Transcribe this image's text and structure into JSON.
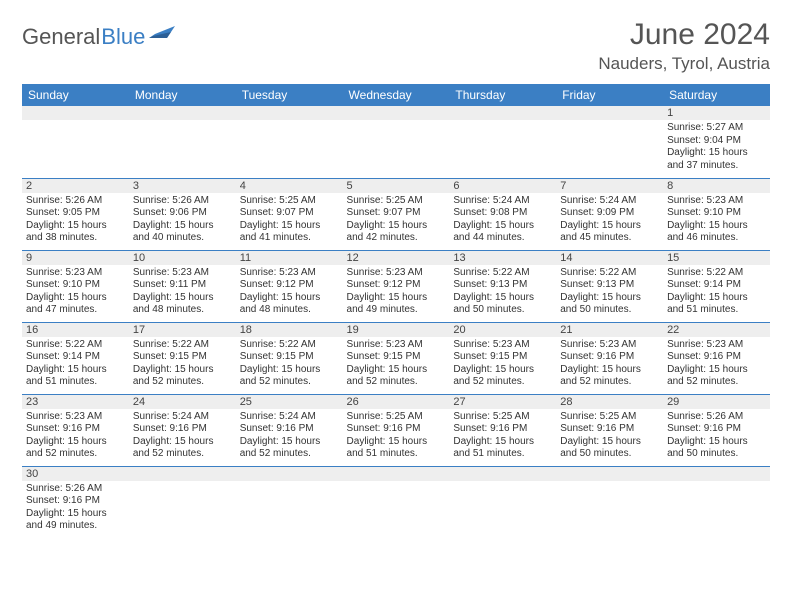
{
  "brand": {
    "part1": "General",
    "part2": "Blue"
  },
  "title": "June 2024",
  "location": "Nauders, Tyrol, Austria",
  "colors": {
    "header_bg": "#3b7fc4",
    "header_text": "#ffffff",
    "daynum_bg": "#eeeeee",
    "cell_border": "#3b7fc4",
    "text": "#333333",
    "title_text": "#555555"
  },
  "fonts": {
    "title_size": 30,
    "location_size": 17,
    "dayheader_size": 12,
    "daynum_size": 11,
    "detail_size": 10
  },
  "day_headers": [
    "Sunday",
    "Monday",
    "Tuesday",
    "Wednesday",
    "Thursday",
    "Friday",
    "Saturday"
  ],
  "weeks": [
    [
      {
        "n": "",
        "sr": "",
        "ss": "",
        "dl": ""
      },
      {
        "n": "",
        "sr": "",
        "ss": "",
        "dl": ""
      },
      {
        "n": "",
        "sr": "",
        "ss": "",
        "dl": ""
      },
      {
        "n": "",
        "sr": "",
        "ss": "",
        "dl": ""
      },
      {
        "n": "",
        "sr": "",
        "ss": "",
        "dl": ""
      },
      {
        "n": "",
        "sr": "",
        "ss": "",
        "dl": ""
      },
      {
        "n": "1",
        "sr": "Sunrise: 5:27 AM",
        "ss": "Sunset: 9:04 PM",
        "dl": "Daylight: 15 hours and 37 minutes."
      }
    ],
    [
      {
        "n": "2",
        "sr": "Sunrise: 5:26 AM",
        "ss": "Sunset: 9:05 PM",
        "dl": "Daylight: 15 hours and 38 minutes."
      },
      {
        "n": "3",
        "sr": "Sunrise: 5:26 AM",
        "ss": "Sunset: 9:06 PM",
        "dl": "Daylight: 15 hours and 40 minutes."
      },
      {
        "n": "4",
        "sr": "Sunrise: 5:25 AM",
        "ss": "Sunset: 9:07 PM",
        "dl": "Daylight: 15 hours and 41 minutes."
      },
      {
        "n": "5",
        "sr": "Sunrise: 5:25 AM",
        "ss": "Sunset: 9:07 PM",
        "dl": "Daylight: 15 hours and 42 minutes."
      },
      {
        "n": "6",
        "sr": "Sunrise: 5:24 AM",
        "ss": "Sunset: 9:08 PM",
        "dl": "Daylight: 15 hours and 44 minutes."
      },
      {
        "n": "7",
        "sr": "Sunrise: 5:24 AM",
        "ss": "Sunset: 9:09 PM",
        "dl": "Daylight: 15 hours and 45 minutes."
      },
      {
        "n": "8",
        "sr": "Sunrise: 5:23 AM",
        "ss": "Sunset: 9:10 PM",
        "dl": "Daylight: 15 hours and 46 minutes."
      }
    ],
    [
      {
        "n": "9",
        "sr": "Sunrise: 5:23 AM",
        "ss": "Sunset: 9:10 PM",
        "dl": "Daylight: 15 hours and 47 minutes."
      },
      {
        "n": "10",
        "sr": "Sunrise: 5:23 AM",
        "ss": "Sunset: 9:11 PM",
        "dl": "Daylight: 15 hours and 48 minutes."
      },
      {
        "n": "11",
        "sr": "Sunrise: 5:23 AM",
        "ss": "Sunset: 9:12 PM",
        "dl": "Daylight: 15 hours and 48 minutes."
      },
      {
        "n": "12",
        "sr": "Sunrise: 5:23 AM",
        "ss": "Sunset: 9:12 PM",
        "dl": "Daylight: 15 hours and 49 minutes."
      },
      {
        "n": "13",
        "sr": "Sunrise: 5:22 AM",
        "ss": "Sunset: 9:13 PM",
        "dl": "Daylight: 15 hours and 50 minutes."
      },
      {
        "n": "14",
        "sr": "Sunrise: 5:22 AM",
        "ss": "Sunset: 9:13 PM",
        "dl": "Daylight: 15 hours and 50 minutes."
      },
      {
        "n": "15",
        "sr": "Sunrise: 5:22 AM",
        "ss": "Sunset: 9:14 PM",
        "dl": "Daylight: 15 hours and 51 minutes."
      }
    ],
    [
      {
        "n": "16",
        "sr": "Sunrise: 5:22 AM",
        "ss": "Sunset: 9:14 PM",
        "dl": "Daylight: 15 hours and 51 minutes."
      },
      {
        "n": "17",
        "sr": "Sunrise: 5:22 AM",
        "ss": "Sunset: 9:15 PM",
        "dl": "Daylight: 15 hours and 52 minutes."
      },
      {
        "n": "18",
        "sr": "Sunrise: 5:22 AM",
        "ss": "Sunset: 9:15 PM",
        "dl": "Daylight: 15 hours and 52 minutes."
      },
      {
        "n": "19",
        "sr": "Sunrise: 5:23 AM",
        "ss": "Sunset: 9:15 PM",
        "dl": "Daylight: 15 hours and 52 minutes."
      },
      {
        "n": "20",
        "sr": "Sunrise: 5:23 AM",
        "ss": "Sunset: 9:15 PM",
        "dl": "Daylight: 15 hours and 52 minutes."
      },
      {
        "n": "21",
        "sr": "Sunrise: 5:23 AM",
        "ss": "Sunset: 9:16 PM",
        "dl": "Daylight: 15 hours and 52 minutes."
      },
      {
        "n": "22",
        "sr": "Sunrise: 5:23 AM",
        "ss": "Sunset: 9:16 PM",
        "dl": "Daylight: 15 hours and 52 minutes."
      }
    ],
    [
      {
        "n": "23",
        "sr": "Sunrise: 5:23 AM",
        "ss": "Sunset: 9:16 PM",
        "dl": "Daylight: 15 hours and 52 minutes."
      },
      {
        "n": "24",
        "sr": "Sunrise: 5:24 AM",
        "ss": "Sunset: 9:16 PM",
        "dl": "Daylight: 15 hours and 52 minutes."
      },
      {
        "n": "25",
        "sr": "Sunrise: 5:24 AM",
        "ss": "Sunset: 9:16 PM",
        "dl": "Daylight: 15 hours and 52 minutes."
      },
      {
        "n": "26",
        "sr": "Sunrise: 5:25 AM",
        "ss": "Sunset: 9:16 PM",
        "dl": "Daylight: 15 hours and 51 minutes."
      },
      {
        "n": "27",
        "sr": "Sunrise: 5:25 AM",
        "ss": "Sunset: 9:16 PM",
        "dl": "Daylight: 15 hours and 51 minutes."
      },
      {
        "n": "28",
        "sr": "Sunrise: 5:25 AM",
        "ss": "Sunset: 9:16 PM",
        "dl": "Daylight: 15 hours and 50 minutes."
      },
      {
        "n": "29",
        "sr": "Sunrise: 5:26 AM",
        "ss": "Sunset: 9:16 PM",
        "dl": "Daylight: 15 hours and 50 minutes."
      }
    ],
    [
      {
        "n": "30",
        "sr": "Sunrise: 5:26 AM",
        "ss": "Sunset: 9:16 PM",
        "dl": "Daylight: 15 hours and 49 minutes."
      },
      {
        "n": "",
        "sr": "",
        "ss": "",
        "dl": ""
      },
      {
        "n": "",
        "sr": "",
        "ss": "",
        "dl": ""
      },
      {
        "n": "",
        "sr": "",
        "ss": "",
        "dl": ""
      },
      {
        "n": "",
        "sr": "",
        "ss": "",
        "dl": ""
      },
      {
        "n": "",
        "sr": "",
        "ss": "",
        "dl": ""
      },
      {
        "n": "",
        "sr": "",
        "ss": "",
        "dl": ""
      }
    ]
  ]
}
